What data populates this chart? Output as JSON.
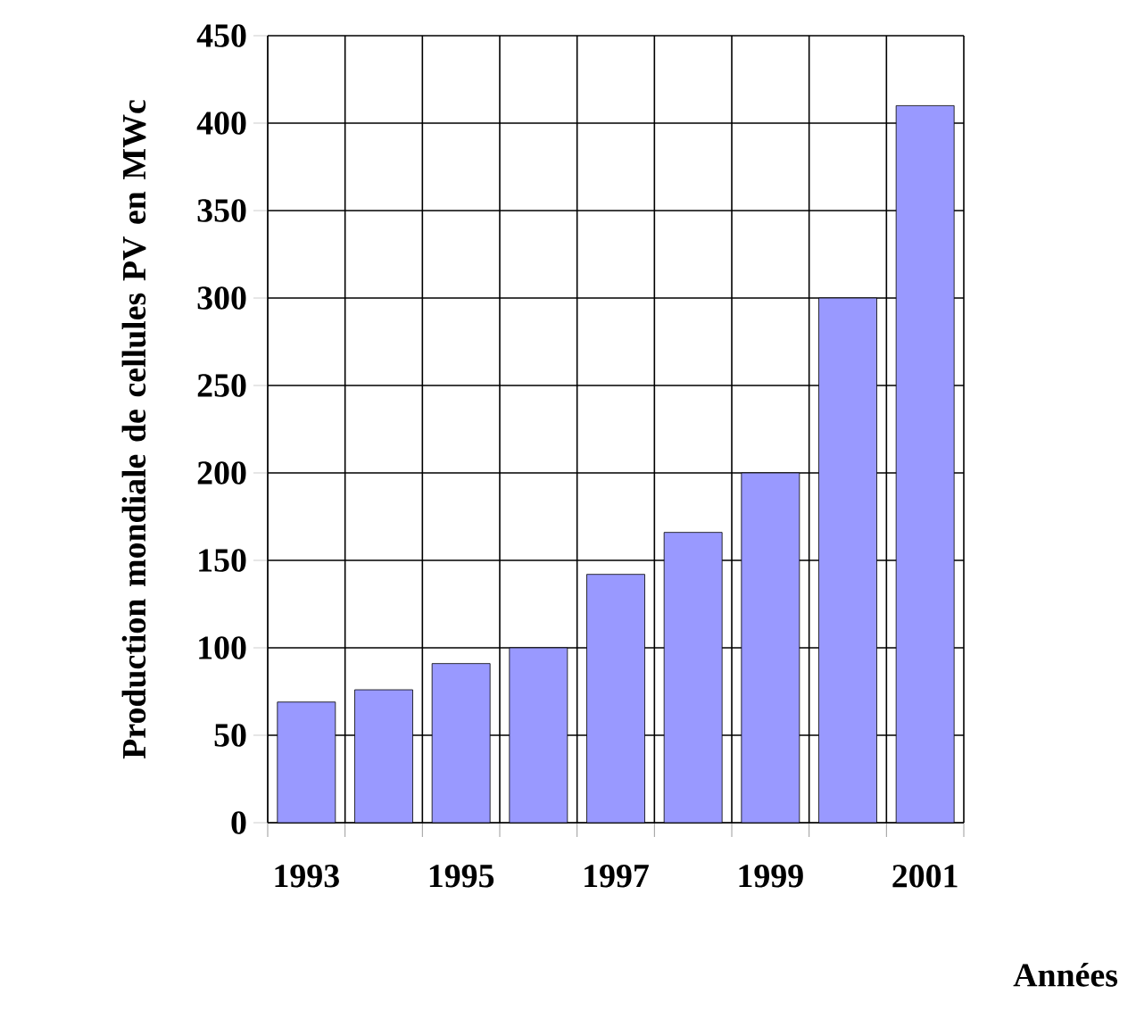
{
  "chart_data": {
    "type": "bar",
    "xlabel": "Années",
    "ylabel": "Production mondiale de cellules PV en MWc",
    "categories": [
      "1993",
      null,
      "1995",
      null,
      "1997",
      null,
      "1999",
      null,
      "2001"
    ],
    "values": [
      69,
      76,
      91,
      100,
      142,
      166,
      200,
      300,
      410
    ],
    "color": "#9999ff",
    "ylim": [
      0,
      450
    ],
    "yticks": [
      0,
      50,
      100,
      150,
      200,
      250,
      300,
      350,
      400,
      450
    ],
    "grid": true
  }
}
